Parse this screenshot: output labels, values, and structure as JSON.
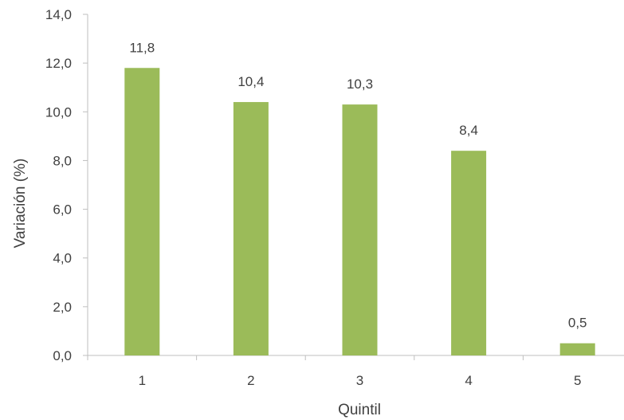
{
  "chart_data": {
    "type": "bar",
    "title": "",
    "xlabel": "Quintil",
    "ylabel": "Variación (%)",
    "categories": [
      "1",
      "2",
      "3",
      "4",
      "5"
    ],
    "values": [
      11.8,
      10.4,
      10.3,
      8.4,
      0.5
    ],
    "data_labels": [
      "11,8",
      "10,4",
      "10,3",
      "8,4",
      "0,5"
    ],
    "ylim": [
      0,
      14
    ],
    "yticks": [
      0,
      2,
      4,
      6,
      8,
      10,
      12,
      14
    ],
    "ytick_labels": [
      "0,0",
      "2,0",
      "4,0",
      "6,0",
      "8,0",
      "10,0",
      "12,0",
      "14,0"
    ],
    "grid": false,
    "legend": "none",
    "bar_color": "#9BBB59",
    "axis_color": "#BFBFBF"
  }
}
